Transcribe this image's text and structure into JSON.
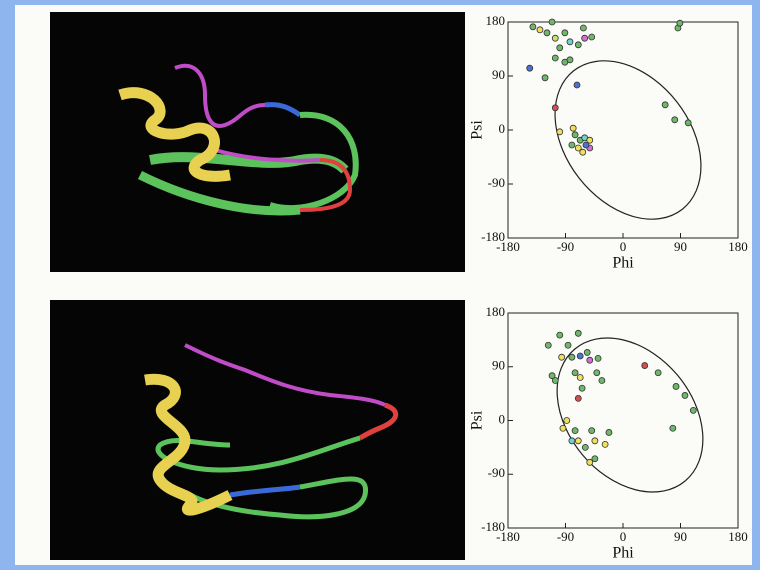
{
  "chart_data": [
    {
      "type": "scatter",
      "x_label": "Phi",
      "y_label": "Psi",
      "xlim": [
        -180,
        180
      ],
      "ylim": [
        -180,
        180
      ],
      "xticks": [
        -180,
        -90,
        0,
        90,
        180
      ],
      "yticks": [
        -180,
        -90,
        0,
        90,
        180
      ],
      "x": [
        -141,
        -130,
        -119,
        -111,
        -106,
        -91,
        -83,
        -70,
        -62,
        -60,
        -49,
        -99,
        -106,
        -91,
        -83,
        -122,
        -146,
        -72,
        -106,
        86,
        89,
        66,
        81,
        102,
        -99,
        -78,
        -75,
        -67,
        -60,
        -52,
        -70,
        -63,
        -52,
        -80,
        -58
      ],
      "y": [
        172,
        167,
        162,
        180,
        153,
        162,
        147,
        142,
        170,
        153,
        155,
        137,
        120,
        113,
        117,
        87,
        103,
        75,
        37,
        170,
        178,
        42,
        17,
        12,
        -3,
        3,
        -8,
        -17,
        -13,
        -17,
        -30,
        -37,
        -30,
        -25,
        -25
      ],
      "colors": [
        "#6fb86a",
        "#f0e060",
        "#6fb86a",
        "#6fb86a",
        "#c8e070",
        "#6fb86a",
        "#70d0d0",
        "#6fb86a",
        "#6fb86a",
        "#d070d0",
        "#6fb86a",
        "#6fb86a",
        "#6fb86a",
        "#6fb86a",
        "#6fb86a",
        "#6fb86a",
        "#5070d0",
        "#5070d0",
        "#d05050",
        "#6fb86a",
        "#6fb86a",
        "#6fb86a",
        "#6fb86a",
        "#6fb86a",
        "#f0e060",
        "#f0e060",
        "#6fb86a",
        "#6fb86a",
        "#70d0d0",
        "#f0e060",
        "#f0e060",
        "#f0e060",
        "#d070d0",
        "#6fb86a",
        "#5070d0"
      ]
    },
    {
      "type": "scatter",
      "x_label": "Phi",
      "y_label": "Psi",
      "xlim": [
        -180,
        180
      ],
      "ylim": [
        -180,
        180
      ],
      "xticks": [
        -180,
        -90,
        0,
        90,
        180
      ],
      "yticks": [
        -180,
        -90,
        0,
        90,
        180
      ],
      "x": [
        -99,
        -70,
        -117,
        -86,
        -96,
        -80,
        -67,
        -56,
        -52,
        -39,
        -111,
        -106,
        -75,
        -67,
        -41,
        -33,
        34,
        55,
        83,
        97,
        110,
        78,
        -88,
        -94,
        -75,
        -80,
        -70,
        -49,
        -44,
        -59,
        -44,
        -52,
        -22,
        -28,
        -70,
        -64
      ],
      "y": [
        143,
        146,
        126,
        126,
        106,
        106,
        108,
        114,
        101,
        104,
        75,
        67,
        80,
        72,
        80,
        67,
        92,
        80,
        57,
        42,
        17,
        -13,
        0,
        -13,
        -17,
        -34,
        -34,
        -17,
        -34,
        -45,
        -64,
        -70,
        -20,
        -40,
        37,
        54
      ],
      "colors": [
        "#6fb86a",
        "#6fb86a",
        "#6fb86a",
        "#6fb86a",
        "#f0e060",
        "#6fb86a",
        "#5070d0",
        "#6fb86a",
        "#d070d0",
        "#6fb86a",
        "#6fb86a",
        "#6fb86a",
        "#6fb86a",
        "#f0e060",
        "#6fb86a",
        "#6fb86a",
        "#d05050",
        "#6fb86a",
        "#6fb86a",
        "#6fb86a",
        "#6fb86a",
        "#6fb86a",
        "#f0e060",
        "#f0e060",
        "#6fb86a",
        "#70d0d0",
        "#f0e060",
        "#6fb86a",
        "#f0e060",
        "#6fb86a",
        "#6fb86a",
        "#f0e060",
        "#6fb86a",
        "#f0e060",
        "#d05050",
        "#6fb86a"
      ]
    }
  ]
}
